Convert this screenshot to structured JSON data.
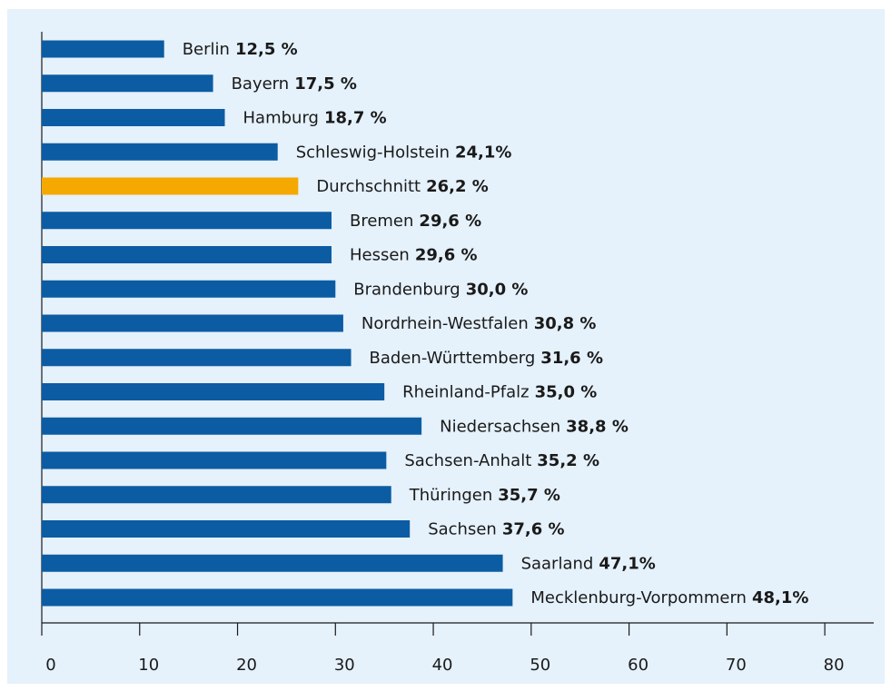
{
  "chart_data": {
    "type": "bar",
    "orientation": "horizontal",
    "categories": [
      "Berlin",
      "Bayern",
      "Hamburg",
      "Schleswig-Holstein",
      "Durchschnitt",
      "Bremen",
      "Hessen",
      "Brandenburg",
      "Nordrhein-Westfalen",
      "Baden-Württemberg",
      "Rheinland-Pfalz",
      "Niedersachsen",
      "Sachsen-Anhalt",
      "Thüringen",
      "Sachsen",
      "Saarland",
      "Mecklenburg-Vorpommern"
    ],
    "values": [
      12.5,
      17.5,
      18.7,
      24.1,
      26.2,
      29.6,
      29.6,
      30.0,
      30.8,
      31.6,
      35.0,
      38.8,
      35.2,
      35.7,
      37.6,
      47.1,
      48.1
    ],
    "value_labels": [
      "12,5 %",
      "17,5 %",
      "18,7 %",
      "24,1%",
      "26,2 %",
      "29,6 %",
      "29,6 %",
      "30,0 %",
      "30,8 %",
      "31,6 %",
      "35,0 %",
      "38,8 %",
      "35,2 %",
      "35,7 %",
      "37,6 %",
      "47,1%",
      "48,1%"
    ],
    "colors": [
      "#0b5ca3",
      "#0b5ca3",
      "#0b5ca3",
      "#0b5ca3",
      "#f5a800",
      "#0b5ca3",
      "#0b5ca3",
      "#0b5ca3",
      "#0b5ca3",
      "#0b5ca3",
      "#0b5ca3",
      "#0b5ca3",
      "#0b5ca3",
      "#0b5ca3",
      "#0b5ca3",
      "#0b5ca3",
      "#0b5ca3"
    ],
    "xlim": [
      0,
      85
    ],
    "xticks": [
      0,
      10,
      20,
      30,
      40,
      50,
      60,
      70,
      80
    ]
  }
}
